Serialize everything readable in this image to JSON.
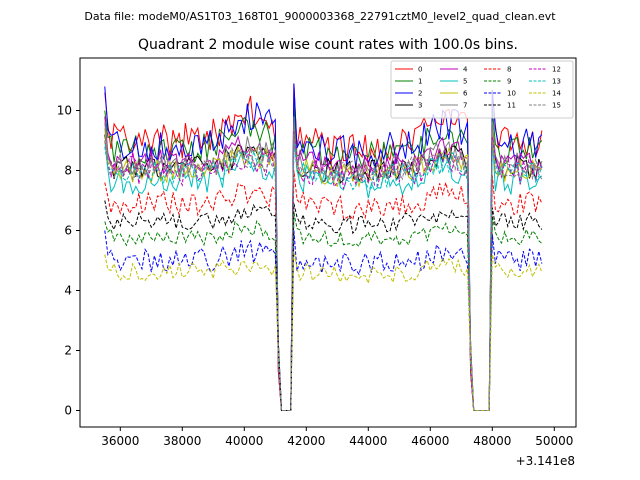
{
  "chart_data": {
    "type": "line",
    "suptitle": "Data file: modeM0/AS1T03_168T01_9000003368_22791cztM0_level2_quad_clean.evt",
    "title": "Quadrant 2 module wise count rates with 100.0s bins.",
    "xlabel": "",
    "ylabel": "",
    "x_offset_label": "+3.141e8",
    "x_offset": 314100000,
    "xlim": [
      34700,
      50700
    ],
    "ylim": [
      -0.55,
      11.75
    ],
    "x_ticks": [
      36000,
      38000,
      40000,
      42000,
      44000,
      46000,
      48000,
      50000
    ],
    "x_tick_labels": [
      "36000",
      "38000",
      "40000",
      "42000",
      "44000",
      "46000",
      "48000",
      "50000"
    ],
    "y_ticks": [
      0,
      2,
      4,
      6,
      8,
      10
    ],
    "y_tick_labels": [
      "0",
      "2",
      "4",
      "6",
      "8",
      "10"
    ],
    "legend_position": "top-right",
    "x_start": 35500,
    "x_end": 49650,
    "bin_width": 100,
    "gaps": [
      {
        "drop_start": 41100,
        "zero_start": 41200,
        "zero_end": 41500,
        "rise_end": 41600
      },
      {
        "drop_start": 47300,
        "zero_start": 47400,
        "zero_end": 47900,
        "rise_end": 48000
      }
    ],
    "series": [
      {
        "name": "0",
        "color": "#ff0000",
        "style": "solid",
        "level": 9.0,
        "noise": 0.6,
        "start": 10.6,
        "peak": 10.9,
        "bump": 1.0
      },
      {
        "name": "1",
        "color": "#008000",
        "style": "solid",
        "level": 8.7,
        "noise": 0.5,
        "start": 10.0,
        "peak": 10.3,
        "bump": 0.6
      },
      {
        "name": "2",
        "color": "#0000ff",
        "style": "solid",
        "level": 8.9,
        "noise": 0.6,
        "start": 10.8,
        "peak": 10.9,
        "bump": 0.9
      },
      {
        "name": "3",
        "color": "#000000",
        "style": "solid",
        "level": 8.1,
        "noise": 0.4,
        "start": 9.2,
        "peak": 9.7,
        "bump": 0.5
      },
      {
        "name": "4",
        "color": "#bf00bf",
        "style": "solid",
        "level": 8.3,
        "noise": 0.4,
        "start": 9.8,
        "peak": 9.6,
        "bump": 0.6
      },
      {
        "name": "5",
        "color": "#00bfbf",
        "style": "solid",
        "level": 7.7,
        "noise": 0.5,
        "start": 9.0,
        "peak": 9.4,
        "bump": 0.5
      },
      {
        "name": "6",
        "color": "#bfbf00",
        "style": "solid",
        "level": 8.0,
        "noise": 0.4,
        "start": 9.4,
        "peak": 9.5,
        "bump": 0.5
      },
      {
        "name": "7",
        "color": "#808080",
        "style": "solid",
        "level": 8.2,
        "noise": 0.4,
        "start": 9.6,
        "peak": 9.8,
        "bump": 0.6
      },
      {
        "name": "8",
        "color": "#ff0000",
        "style": "dashed",
        "level": 6.9,
        "noise": 0.4,
        "start": 7.6,
        "peak": 8.0,
        "bump": 0.4
      },
      {
        "name": "9",
        "color": "#008000",
        "style": "dashed",
        "level": 5.8,
        "noise": 0.3,
        "start": 6.3,
        "peak": 6.6,
        "bump": 0.3
      },
      {
        "name": "10",
        "color": "#0000ff",
        "style": "dashed",
        "level": 5.0,
        "noise": 0.4,
        "start": 6.0,
        "peak": 6.0,
        "bump": 0.3
      },
      {
        "name": "11",
        "color": "#000000",
        "style": "dashed",
        "level": 6.3,
        "noise": 0.3,
        "start": 7.0,
        "peak": 6.9,
        "bump": 0.3
      },
      {
        "name": "12",
        "color": "#bf00bf",
        "style": "dashed",
        "level": 8.0,
        "noise": 0.5,
        "start": 9.0,
        "peak": 9.3,
        "bump": 0.4
      },
      {
        "name": "13",
        "color": "#00bfbf",
        "style": "dashed",
        "level": 7.9,
        "noise": 0.4,
        "start": 8.8,
        "peak": 9.0,
        "bump": 0.4
      },
      {
        "name": "14",
        "color": "#bfbf00",
        "style": "dashed",
        "level": 4.6,
        "noise": 0.3,
        "start": 5.2,
        "peak": 5.3,
        "bump": 0.3
      },
      {
        "name": "15",
        "color": "#808080",
        "style": "dashed",
        "level": 8.1,
        "noise": 0.4,
        "start": 9.0,
        "peak": 9.2,
        "bump": 0.4
      }
    ]
  }
}
